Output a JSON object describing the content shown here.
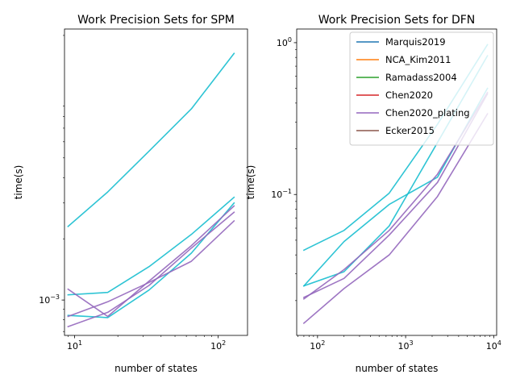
{
  "chart_data": [
    {
      "type": "line",
      "title": "Work Precision Sets for SPM",
      "xlabel": "number of states",
      "ylabel": "time(s)",
      "xscale": "log",
      "yscale": "log",
      "xlim": [
        8.5,
        160
      ],
      "ylim": [
        0.00067,
        0.0215
      ],
      "xticks_major": [
        {
          "v": 10,
          "b": "10",
          "e": "1"
        },
        {
          "v": 100,
          "b": "10",
          "e": "2"
        }
      ],
      "yticks_major": [
        {
          "v": 0.001,
          "b": "10",
          "e": "−3"
        }
      ],
      "series": [
        {
          "color": "#17becf",
          "x": [
            9,
            17,
            33,
            65,
            129
          ],
          "y": [
            0.0023,
            0.0034,
            0.0054,
            0.0087,
            0.0163
          ]
        },
        {
          "color": "#17becf",
          "x": [
            9,
            17,
            33,
            65,
            129
          ],
          "y": [
            0.00106,
            0.00109,
            0.00146,
            0.0021,
            0.0032
          ]
        },
        {
          "color": "#17becf",
          "x": [
            9,
            17,
            33,
            65,
            129
          ],
          "y": [
            0.00084,
            0.00082,
            0.00112,
            0.0017,
            0.003
          ]
        },
        {
          "color": "#9467bd",
          "x": [
            9,
            17,
            33,
            65,
            129
          ],
          "y": [
            0.00113,
            0.00083,
            0.00124,
            0.00185,
            0.0029
          ]
        },
        {
          "color": "#9467bd",
          "x": [
            9,
            17,
            33,
            65,
            129
          ],
          "y": [
            0.00083,
            0.00098,
            0.00122,
            0.00155,
            0.00245
          ]
        },
        {
          "color": "#9467bd",
          "x": [
            9,
            17,
            33,
            65,
            129
          ],
          "y": [
            0.00074,
            0.00087,
            0.00118,
            0.0018,
            0.0027
          ]
        }
      ]
    },
    {
      "type": "line",
      "title": "Work Precision Sets for DFN",
      "xlabel": "number of states",
      "ylabel": "time(s)",
      "xscale": "log",
      "yscale": "log",
      "xlim": [
        58,
        10800
      ],
      "ylim": [
        0.0118,
        1.23
      ],
      "xticks_major": [
        {
          "v": 100,
          "b": "10",
          "e": "2"
        },
        {
          "v": 1000,
          "b": "10",
          "e": "3"
        },
        {
          "v": 10000,
          "b": "10",
          "e": "4"
        }
      ],
      "yticks_major": [
        {
          "v": 0.1,
          "b": "10",
          "e": "−1"
        },
        {
          "v": 1,
          "b": "10",
          "e": "0"
        }
      ],
      "series": [
        {
          "color": "#17becf",
          "x": [
            70,
            200,
            650,
            2300,
            8500
          ],
          "y": [
            0.043,
            0.058,
            0.102,
            0.29,
            0.97
          ]
        },
        {
          "color": "#17becf",
          "x": [
            70,
            200,
            650,
            2300,
            8500
          ],
          "y": [
            0.025,
            0.031,
            0.062,
            0.22,
            0.82
          ]
        },
        {
          "color": "#17becf",
          "x": [
            70,
            200,
            650,
            2300,
            8500
          ],
          "y": [
            0.025,
            0.049,
            0.086,
            0.13,
            0.5
          ]
        },
        {
          "color": "#9467bd",
          "x": [
            70,
            200,
            650,
            2300,
            8500
          ],
          "y": [
            0.0205,
            0.032,
            0.058,
            0.136,
            0.47
          ]
        },
        {
          "color": "#9467bd",
          "x": [
            70,
            200,
            650,
            2300,
            8500
          ],
          "y": [
            0.021,
            0.028,
            0.054,
            0.12,
            0.46
          ]
        },
        {
          "color": "#9467bd",
          "x": [
            70,
            200,
            650,
            2300,
            8500
          ],
          "y": [
            0.0142,
            0.024,
            0.04,
            0.097,
            0.34
          ]
        }
      ],
      "legend": {
        "placement": "top-right",
        "entries": [
          {
            "label": "Marquis2019",
            "color": "#1f77b4"
          },
          {
            "label": "NCA_Kim2011",
            "color": "#ff7f0e"
          },
          {
            "label": "Ramadass2004",
            "color": "#2ca02c"
          },
          {
            "label": "Chen2020",
            "color": "#d62728"
          },
          {
            "label": "Chen2020_plating",
            "color": "#9467bd"
          },
          {
            "label": "Ecker2015",
            "color": "#8c564b"
          }
        ]
      }
    }
  ]
}
